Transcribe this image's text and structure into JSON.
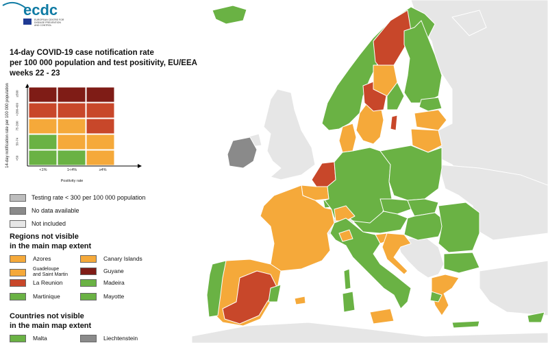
{
  "logo": {
    "wordmark": "ecdc",
    "agency_line1": "EUROPEAN CENTRE FOR",
    "agency_line2": "DISEASE PREVENTION",
    "agency_line3": "AND CONTROL"
  },
  "title": {
    "line1": "14-day COVID-19 case notification rate",
    "line2": "per 100 000 population and test positivity, EU/EEA",
    "line3": "weeks 22 - 23"
  },
  "colors": {
    "green": "#6ab244",
    "orange": "#f5a93a",
    "red": "#c8472a",
    "dark_red": "#7f1c16",
    "light_grey_testing": "#bdbdbd",
    "dark_grey_no_data": "#8a8a8a",
    "not_included": "#e6e6e6",
    "sea": "#ffffff",
    "borders": "#ffffff"
  },
  "matrix": {
    "y_axis_label": "14-day notification rate per 100 000 population",
    "x_axis_label": "Positivity rate",
    "rate_bands": [
      "≥500",
      ">200-499",
      "75-200",
      "50-74",
      "<50"
    ],
    "positivity_bands": [
      "<1%",
      "1<4%",
      "≥4%"
    ],
    "cells": [
      [
        "dark_red",
        "dark_red",
        "dark_red"
      ],
      [
        "red",
        "red",
        "red"
      ],
      [
        "orange",
        "orange",
        "red"
      ],
      [
        "green",
        "orange",
        "orange"
      ],
      [
        "green",
        "green",
        "orange"
      ]
    ]
  },
  "legend": {
    "testing_rate": "Testing rate < 300 per 100 000 population",
    "no_data": "No data available",
    "not_included": "Not included"
  },
  "regions_section": {
    "title_line1": "Regions not visible",
    "title_line2": "in the main map extent",
    "items": [
      {
        "label": "Azores",
        "color": "orange"
      },
      {
        "label": "Canary Islands",
        "color": "orange"
      },
      {
        "label_line1": "Guadeloupe",
        "label_line2": "and Saint Martin",
        "color": "orange"
      },
      {
        "label": "Guyane",
        "color": "dark_red"
      },
      {
        "label": "La Reunion",
        "color": "red"
      },
      {
        "label": "Madeira",
        "color": "green"
      },
      {
        "label": "Martinique",
        "color": "green"
      },
      {
        "label": "Mayotte",
        "color": "green"
      }
    ]
  },
  "countries_section": {
    "title_line1": "Countries not visible",
    "title_line2": "in the main map extent",
    "items": [
      {
        "label": "Malta",
        "color": "green"
      },
      {
        "label": "Liechtenstein",
        "color": "dark_grey_no_data"
      }
    ]
  }
}
